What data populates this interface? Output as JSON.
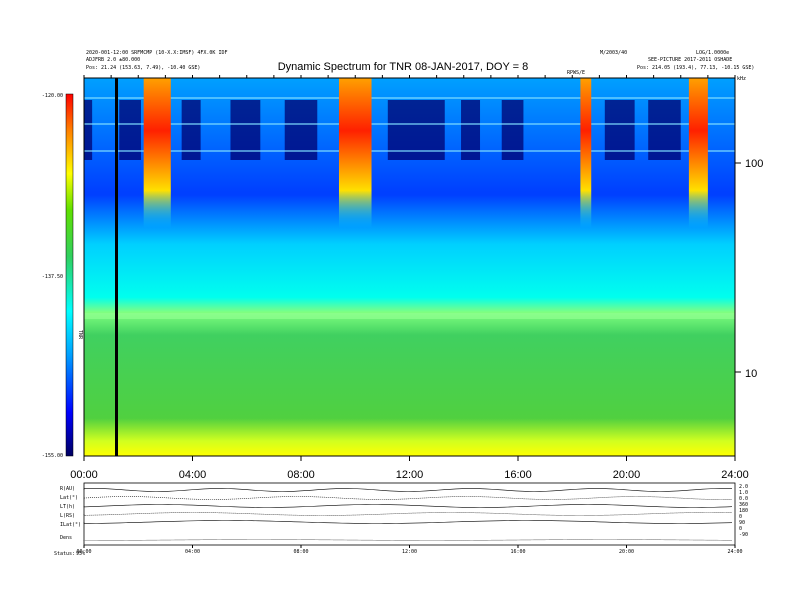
{
  "chart_data": {
    "type": "heatmap",
    "title": "Dynamic Spectrum for TNR 08-JAN-2017, DOY = 8",
    "x_ticks": [
      "00:00",
      "04:00",
      "08:00",
      "12:00",
      "16:00",
      "20:00",
      "24:00"
    ],
    "x_range_hours": [
      0,
      24
    ],
    "y_right_ticks": [
      "100",
      "10"
    ],
    "y_scale": "log",
    "colorbar_ticks": [
      "-120.00",
      "-137.50",
      "-155.00"
    ],
    "colorbar_range": [
      -155,
      -120
    ],
    "colorbar_label": "TNR",
    "colormap": [
      "#000080",
      "#0000ff",
      "#00b0ff",
      "#00ffff",
      "#40e070",
      "#80ff40",
      "#ffff00",
      "#ff8000",
      "#ff0000"
    ],
    "bursts_hours": [
      {
        "start": 2.2,
        "end": 3.2,
        "intensity": "high"
      },
      {
        "start": 9.4,
        "end": 10.6,
        "intensity": "high"
      },
      {
        "start": 18.3,
        "end": 18.7,
        "intensity": "high"
      },
      {
        "start": 22.3,
        "end": 23.0,
        "intensity": "high"
      }
    ],
    "data_gap_hours": [
      1.15,
      1.2
    ],
    "bottom_panel_labels": [
      "R(AU)",
      "Lat(°)",
      "LT(h)",
      "L(RS)",
      "ILat(°)",
      "Dens"
    ],
    "bottom_panel_right_ticks": [
      "2.0",
      "1.0",
      "0.0",
      "360",
      "180",
      "0",
      "90",
      "0",
      "-90"
    ]
  },
  "header": {
    "left_line1": "2020-001-12:00 SRFMCMP (10-X.X:IMSF) 4FX.0K IDF",
    "left_line2": "ADJFRB 2.0 ±80.000",
    "left_line3": "Pos: 21.24 (153.63, 7.49), -10.40 GSE)",
    "right_line1": "M/2003/40",
    "right_line1b": "LOG/1.0000e",
    "right_line2": "SEE-PICTURE 2017-2011 OSHADE",
    "right_line3": "Pos: 214.05 (193.4), 77.13, -10.15 GSE)",
    "marker_label": "RPWS/E",
    "corner_label": "kHz"
  },
  "footer": {
    "stats_label": "Status:",
    "stats_value": "95%"
  }
}
